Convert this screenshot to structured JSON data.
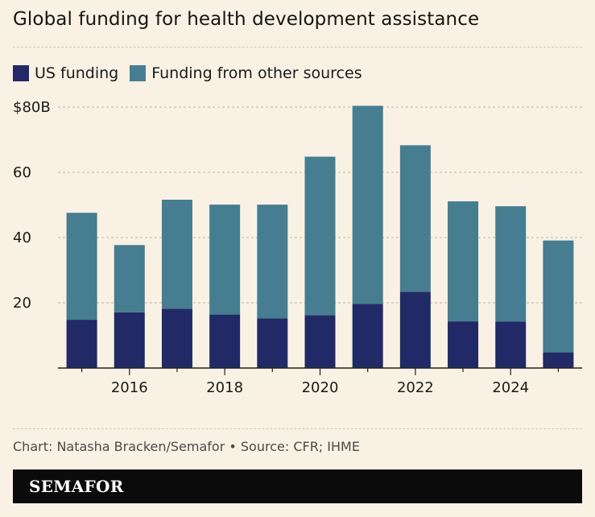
{
  "chart_data": {
    "type": "bar",
    "stacked": true,
    "title": "Global funding for health development assistance",
    "x": [
      2015,
      2016,
      2017,
      2018,
      2019,
      2020,
      2021,
      2022,
      2023,
      2024,
      2025
    ],
    "x_tick_labels": [
      "2016",
      "2018",
      "2020",
      "2022",
      "2024"
    ],
    "y_tick_labels": [
      "$80B",
      "60",
      "40",
      "20"
    ],
    "y_ticks": [
      80,
      60,
      40,
      20
    ],
    "ylim": [
      0,
      80
    ],
    "grid": true,
    "legend_position": "top-left",
    "series": [
      {
        "name": "US funding",
        "color": "#212a66",
        "values": [
          14.8,
          17.1,
          18.2,
          16.4,
          15.2,
          16.2,
          19.7,
          23.4,
          14.3,
          14.2,
          4.8
        ]
      },
      {
        "name": "Funding from other sources",
        "color": "#467d90",
        "values": [
          32.8,
          20.6,
          33.4,
          33.7,
          34.9,
          48.6,
          60.7,
          44.9,
          36.8,
          35.4,
          34.3
        ]
      }
    ]
  },
  "credit": "Chart: Natasha Bracken/Semafor • Source: CFR; IHME",
  "brand": "SEMAFOR"
}
